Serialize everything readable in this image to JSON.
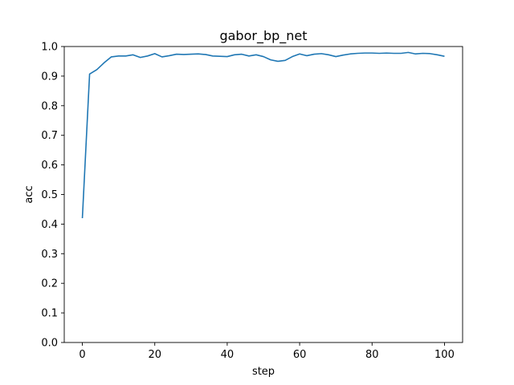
{
  "chart_data": {
    "type": "line",
    "title": "gabor_bp_net",
    "xlabel": "step",
    "ylabel": "acc",
    "xlim": [
      -5,
      105
    ],
    "ylim": [
      0.0,
      1.0
    ],
    "xticks": [
      0,
      20,
      40,
      60,
      80,
      100
    ],
    "xtick_labels": [
      "0",
      "20",
      "40",
      "60",
      "80",
      "100"
    ],
    "yticks": [
      0.0,
      0.1,
      0.2,
      0.3,
      0.4,
      0.5,
      0.6,
      0.7,
      0.8,
      0.9,
      1.0
    ],
    "ytick_labels": [
      "0.0",
      "0.1",
      "0.2",
      "0.3",
      "0.4",
      "0.5",
      "0.6",
      "0.7",
      "0.8",
      "0.9",
      "1.0"
    ],
    "grid": false,
    "line_color": "#1f77b4",
    "series": [
      {
        "x": [
          0,
          2,
          4,
          6,
          8,
          10,
          12,
          14,
          16,
          18,
          20,
          22,
          24,
          26,
          28,
          30,
          32,
          34,
          36,
          38,
          40,
          42,
          44,
          46,
          48,
          50,
          52,
          54,
          56,
          58,
          60,
          62,
          64,
          66,
          68,
          70,
          72,
          74,
          76,
          78,
          80,
          82,
          84,
          86,
          88,
          90,
          92,
          94,
          96,
          98,
          100
        ],
        "values": [
          0.42,
          0.907,
          0.922,
          0.945,
          0.965,
          0.968,
          0.968,
          0.972,
          0.963,
          0.968,
          0.976,
          0.965,
          0.969,
          0.974,
          0.973,
          0.974,
          0.975,
          0.973,
          0.968,
          0.967,
          0.966,
          0.972,
          0.974,
          0.968,
          0.972,
          0.966,
          0.955,
          0.95,
          0.953,
          0.966,
          0.975,
          0.969,
          0.974,
          0.976,
          0.972,
          0.966,
          0.971,
          0.975,
          0.977,
          0.978,
          0.978,
          0.977,
          0.978,
          0.977,
          0.977,
          0.98,
          0.975,
          0.977,
          0.976,
          0.972,
          0.967
        ]
      }
    ]
  }
}
